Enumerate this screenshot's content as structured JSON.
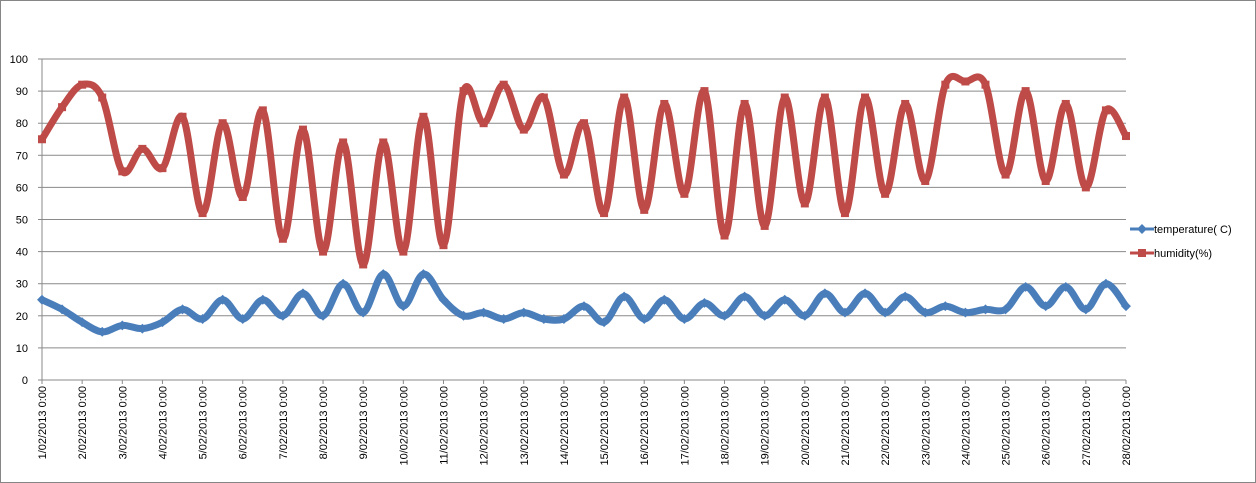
{
  "chart_data": {
    "type": "line",
    "title": "",
    "xlabel": "",
    "ylabel": "",
    "ylim": [
      0,
      100
    ],
    "yticks": [
      0,
      10,
      20,
      30,
      40,
      50,
      60,
      70,
      80,
      90,
      100
    ],
    "grid": "horizontal",
    "legend_position": "right",
    "x_tick_labels": [
      "1/02/2013 0:00",
      "2/02/2013 0:00",
      "3/02/2013 0:00",
      "4/02/2013 0:00",
      "5/02/2013 0:00",
      "6/02/2013 0:00",
      "7/02/2013 0:00",
      "8/02/2013 0:00",
      "9/02/2013 0:00",
      "10/02/2013 0:00",
      "11/02/2013 0:00",
      "12/02/2013 0:00",
      "13/02/2013 0:00",
      "14/02/2013 0:00",
      "15/02/2013 0:00",
      "16/02/2013 0:00",
      "17/02/2013 0:00",
      "18/02/2013 0:00",
      "19/02/2013 0:00",
      "20/02/2013 0:00",
      "21/02/2013 0:00",
      "22/02/2013 0:00",
      "23/02/2013 0:00",
      "24/02/2013 0:00",
      "25/02/2013 0:00",
      "26/02/2013 0:00",
      "27/02/2013 0:00",
      "28/02/2013 0:00"
    ],
    "x_range": [
      "1/02/2013 0:00",
      "28/02/2013 0:00"
    ],
    "series": [
      {
        "name": "temperature( C)",
        "color": "#4a7ebb",
        "marker": "diamond",
        "x": [
          "1/02/2013 0:00",
          "1/02/2013 12:00",
          "2/02/2013 0:00",
          "2/02/2013 12:00",
          "3/02/2013 0:00",
          "3/02/2013 12:00",
          "4/02/2013 0:00",
          "4/02/2013 12:00",
          "5/02/2013 0:00",
          "5/02/2013 12:00",
          "6/02/2013 0:00",
          "6/02/2013 12:00",
          "7/02/2013 0:00",
          "7/02/2013 12:00",
          "8/02/2013 0:00",
          "8/02/2013 12:00",
          "9/02/2013 0:00",
          "9/02/2013 12:00",
          "10/02/2013 0:00",
          "10/02/2013 12:00",
          "11/02/2013 0:00",
          "11/02/2013 12:00",
          "12/02/2013 0:00",
          "12/02/2013 12:00",
          "13/02/2013 0:00",
          "13/02/2013 12:00",
          "14/02/2013 0:00",
          "14/02/2013 12:00",
          "15/02/2013 0:00",
          "15/02/2013 12:00",
          "16/02/2013 0:00",
          "16/02/2013 12:00",
          "17/02/2013 0:00",
          "17/02/2013 12:00",
          "18/02/2013 0:00",
          "18/02/2013 12:00",
          "19/02/2013 0:00",
          "19/02/2013 12:00",
          "20/02/2013 0:00",
          "20/02/2013 12:00",
          "21/02/2013 0:00",
          "21/02/2013 12:00",
          "22/02/2013 0:00",
          "22/02/2013 12:00",
          "23/02/2013 0:00",
          "23/02/2013 12:00",
          "24/02/2013 0:00",
          "24/02/2013 12:00",
          "25/02/2013 0:00",
          "25/02/2013 12:00",
          "26/02/2013 0:00",
          "26/02/2013 12:00",
          "27/02/2013 0:00",
          "27/02/2013 12:00",
          "28/02/2013 0:00"
        ],
        "values": [
          25,
          22,
          18,
          15,
          17,
          16,
          18,
          22,
          19,
          25,
          19,
          25,
          20,
          27,
          20,
          30,
          21,
          33,
          23,
          33,
          25,
          20,
          21,
          19,
          21,
          19,
          19,
          23,
          18,
          26,
          19,
          25,
          19,
          24,
          20,
          26,
          20,
          25,
          20,
          27,
          21,
          27,
          21,
          26,
          21,
          23,
          21,
          22,
          22,
          29,
          23,
          29,
          22,
          30,
          23
        ]
      },
      {
        "name": "humidity(%)",
        "color": "#be4b48",
        "marker": "square",
        "x": [
          "1/02/2013 0:00",
          "1/02/2013 12:00",
          "2/02/2013 0:00",
          "2/02/2013 12:00",
          "3/02/2013 0:00",
          "3/02/2013 12:00",
          "4/02/2013 0:00",
          "4/02/2013 12:00",
          "5/02/2013 0:00",
          "5/02/2013 12:00",
          "6/02/2013 0:00",
          "6/02/2013 12:00",
          "7/02/2013 0:00",
          "7/02/2013 12:00",
          "8/02/2013 0:00",
          "8/02/2013 12:00",
          "9/02/2013 0:00",
          "9/02/2013 12:00",
          "10/02/2013 0:00",
          "10/02/2013 12:00",
          "11/02/2013 0:00",
          "11/02/2013 12:00",
          "12/02/2013 0:00",
          "12/02/2013 12:00",
          "13/02/2013 0:00",
          "13/02/2013 12:00",
          "14/02/2013 0:00",
          "14/02/2013 12:00",
          "15/02/2013 0:00",
          "15/02/2013 12:00",
          "16/02/2013 0:00",
          "16/02/2013 12:00",
          "17/02/2013 0:00",
          "17/02/2013 12:00",
          "18/02/2013 0:00",
          "18/02/2013 12:00",
          "19/02/2013 0:00",
          "19/02/2013 12:00",
          "20/02/2013 0:00",
          "20/02/2013 12:00",
          "21/02/2013 0:00",
          "21/02/2013 12:00",
          "22/02/2013 0:00",
          "22/02/2013 12:00",
          "23/02/2013 0:00",
          "23/02/2013 12:00",
          "24/02/2013 0:00",
          "24/02/2013 12:00",
          "25/02/2013 0:00",
          "25/02/2013 12:00",
          "26/02/2013 0:00",
          "26/02/2013 12:00",
          "27/02/2013 0:00",
          "27/02/2013 12:00",
          "28/02/2013 0:00"
        ],
        "values": [
          75,
          85,
          92,
          88,
          65,
          72,
          66,
          82,
          52,
          80,
          57,
          84,
          44,
          78,
          40,
          74,
          36,
          74,
          40,
          82,
          42,
          90,
          80,
          92,
          78,
          88,
          64,
          80,
          52,
          88,
          53,
          86,
          58,
          90,
          45,
          86,
          48,
          88,
          55,
          88,
          52,
          88,
          58,
          86,
          62,
          92,
          93,
          92,
          64,
          90,
          62,
          86,
          60,
          84,
          76
        ]
      }
    ]
  }
}
